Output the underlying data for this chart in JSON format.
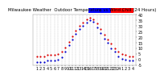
{
  "title": "Milwaukee Weather  Outdoor Temperature vs Wind Chill (24 Hours)",
  "background_color": "#ffffff",
  "grid_color": "#888888",
  "hours": [
    1,
    2,
    3,
    4,
    5,
    6,
    7,
    8,
    9,
    10,
    11,
    12,
    13,
    14,
    15,
    16,
    17,
    18,
    19,
    20,
    21,
    22,
    23,
    24,
    25,
    26,
    27,
    28
  ],
  "temp": [
    3,
    3,
    3,
    4,
    4,
    4,
    5,
    7,
    11,
    16,
    21,
    26,
    30,
    33,
    36,
    37,
    36,
    32,
    27,
    22,
    18,
    14,
    10,
    7,
    5,
    4,
    3,
    3
  ],
  "wind_chill": [
    -2,
    -2,
    -2,
    -1,
    -1,
    -1,
    0,
    2,
    7,
    13,
    18,
    23,
    27,
    30,
    33,
    35,
    34,
    29,
    24,
    19,
    15,
    10,
    7,
    3,
    1,
    0,
    -1,
    -1
  ],
  "ylim": [
    -5,
    40
  ],
  "xlim": [
    0,
    29
  ],
  "temp_color": "#dd0000",
  "wind_chill_color": "#0000cc",
  "legend_bar_blue": "#0000ff",
  "legend_bar_red": "#ff0000",
  "dot_size": 2.5,
  "tick_label_fontsize": 3.5,
  "title_fontsize": 4.0,
  "ytick_vals": [
    -5,
    0,
    5,
    10,
    15,
    20,
    25,
    30,
    35,
    40
  ],
  "xtick_labels": [
    "1",
    "2",
    "3",
    "4",
    "5",
    "6",
    "7",
    "8",
    "9",
    "10",
    "11",
    "12",
    "13",
    "14",
    "15",
    "16",
    "17",
    "18",
    "19",
    "20",
    "21",
    "22",
    "23",
    "24",
    "1",
    "2",
    "3",
    "4"
  ]
}
